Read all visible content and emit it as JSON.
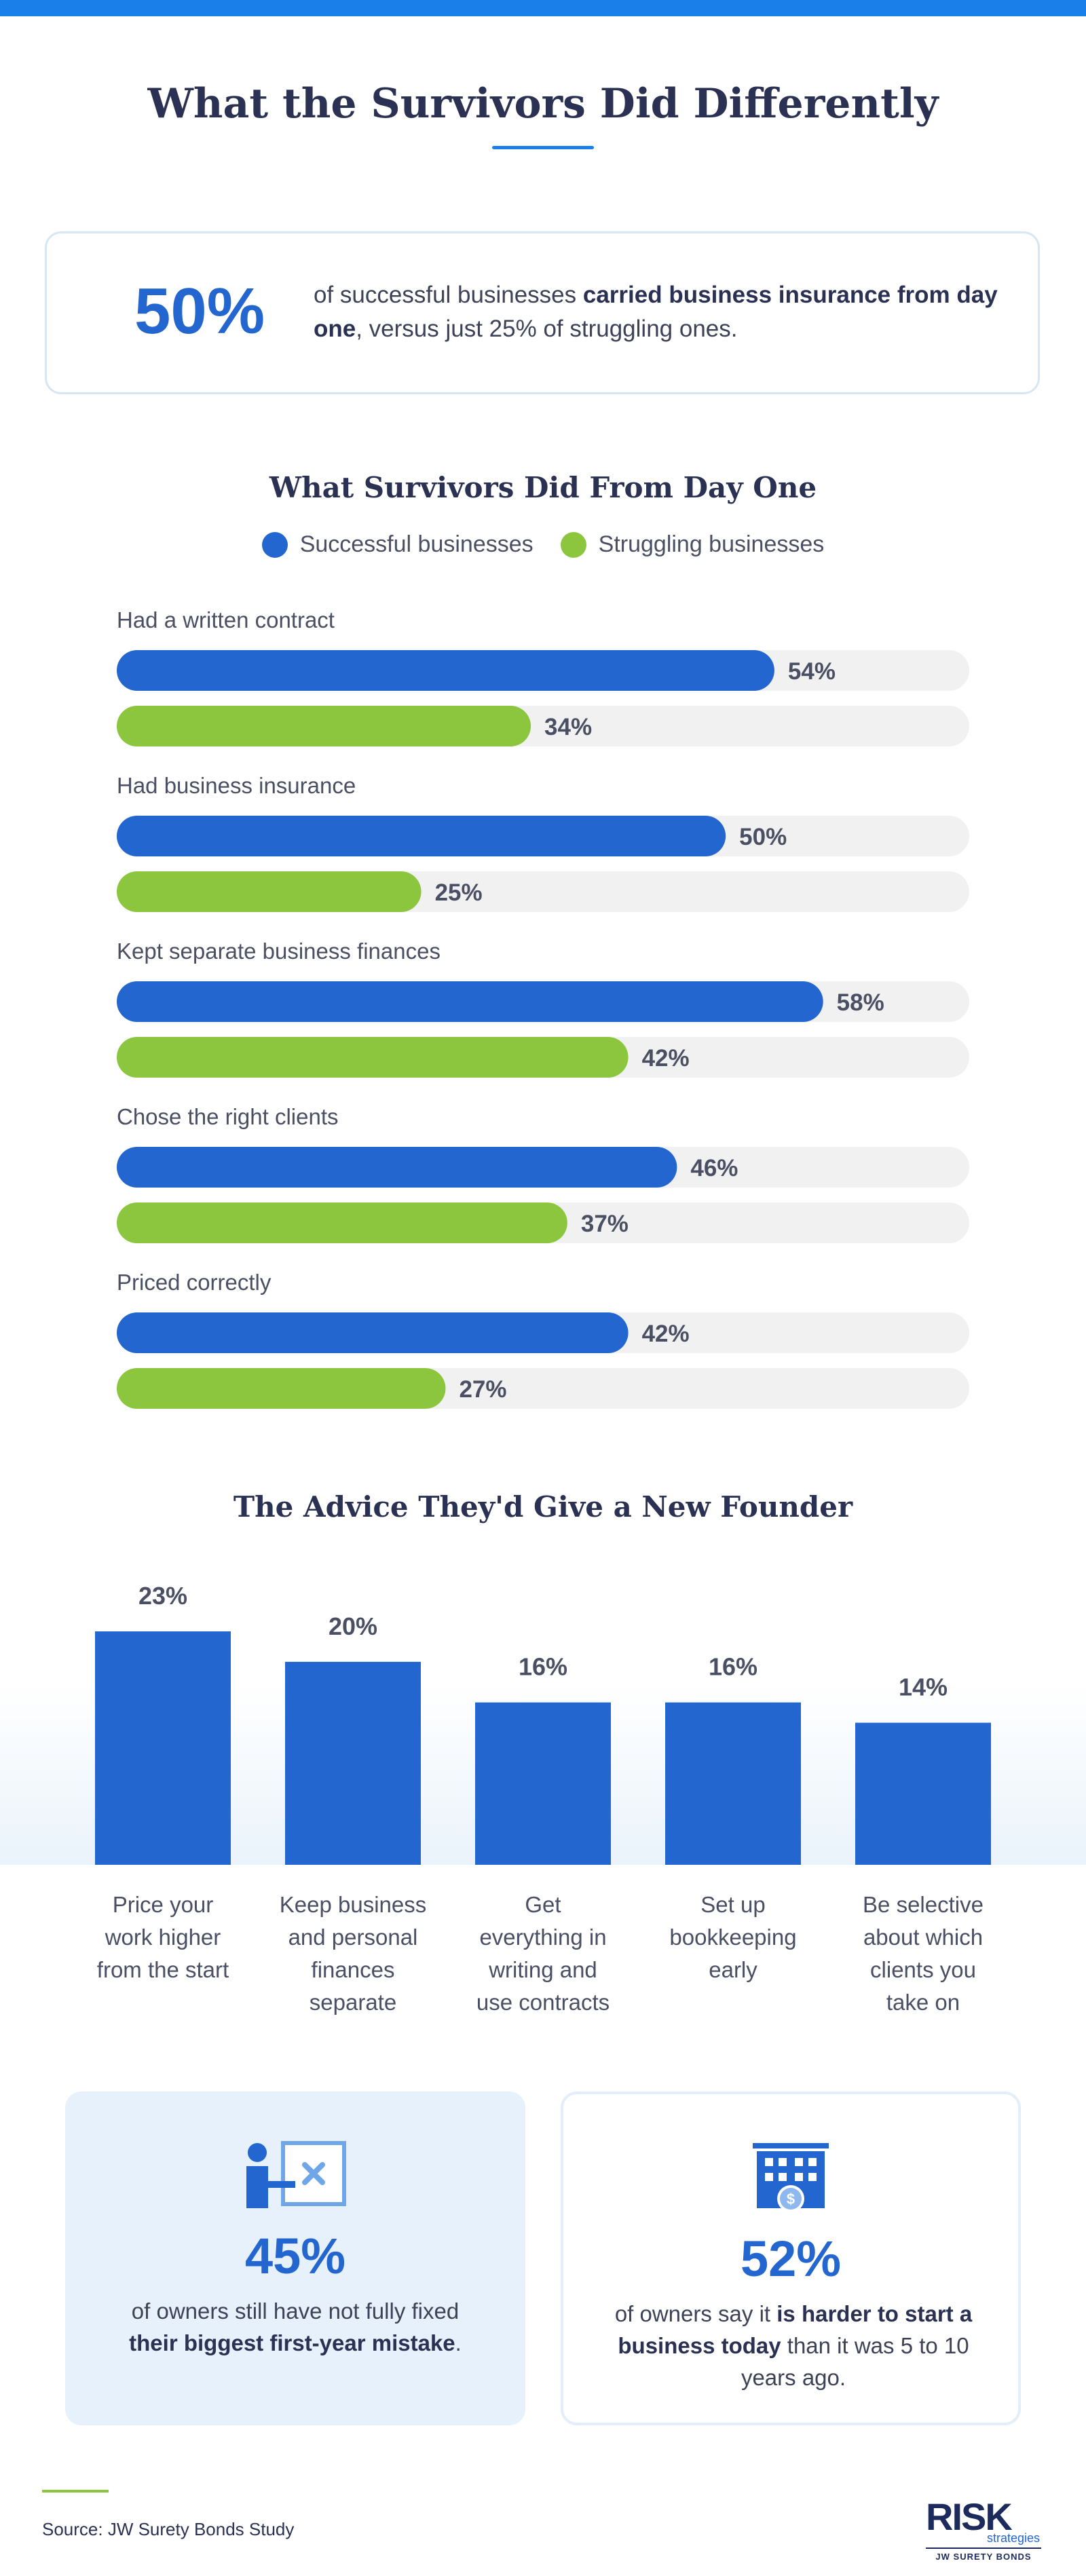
{
  "colors": {
    "accent": "#1a7fe8",
    "successful": "#2466cf",
    "struggling": "#8cc63e",
    "track": "#f1f1f1"
  },
  "header": {
    "title": "What the Survivors Did Differently"
  },
  "highlight": {
    "value": "50%",
    "text_a": "of successful businesses ",
    "text_b": "carried business insurance from day one",
    "text_c": ", versus just 25% of struggling ones."
  },
  "section1": {
    "title": "What Survivors Did From Day One"
  },
  "section2": {
    "title": "The Advice They'd Give a New Founder"
  },
  "chart_data": [
    {
      "type": "bar",
      "orientation": "horizontal",
      "title": "What Survivors Did From Day One",
      "categories": [
        "Had a written contract",
        "Had business insurance",
        "Kept separate business finances",
        "Chose the right clients",
        "Priced correctly"
      ],
      "series": [
        {
          "name": "Successful businesses",
          "values": [
            54,
            50,
            58,
            46,
            42
          ],
          "labels": [
            "54%",
            "50%",
            "58%",
            "46%",
            "42%"
          ]
        },
        {
          "name": "Struggling businesses",
          "values": [
            34,
            25,
            42,
            37,
            27
          ],
          "labels": [
            "34%",
            "25%",
            "42%",
            "37%",
            "27%"
          ]
        }
      ],
      "xlim": [
        0,
        70
      ],
      "legend": "top"
    },
    {
      "type": "bar",
      "title": "The Advice They'd Give a New Founder",
      "categories": [
        [
          "Price your",
          "work higher",
          "from the start"
        ],
        [
          "Keep business",
          "and personal",
          "finances",
          "separate"
        ],
        [
          "Get",
          "everything in",
          "writing and",
          "use contracts"
        ],
        [
          "Set up",
          "bookkeeping",
          "early"
        ],
        [
          "Be selective",
          "about which",
          "clients you",
          "take on"
        ]
      ],
      "values": [
        23,
        20,
        16,
        16,
        14
      ],
      "labels": [
        "23%",
        "20%",
        "16%",
        "16%",
        "14%"
      ],
      "ylim": [
        0,
        23
      ]
    }
  ],
  "cards": [
    {
      "icon": "presentation-icon",
      "value": "45%",
      "text_a": "of owners still have not fully fixed ",
      "text_b": "their biggest first-year mistake",
      "text_c": "."
    },
    {
      "icon": "building-dollar-icon",
      "value": "52%",
      "text_a": "of owners say it ",
      "text_b": "is harder to start a business today",
      "text_c": " than it was 5 to 10 years ago."
    }
  ],
  "footer": {
    "source": "Source: JW Surety Bonds Study"
  },
  "logo": {
    "line1": "RISK",
    "line2": "strategies",
    "line3": "JW SURETY BONDS"
  }
}
